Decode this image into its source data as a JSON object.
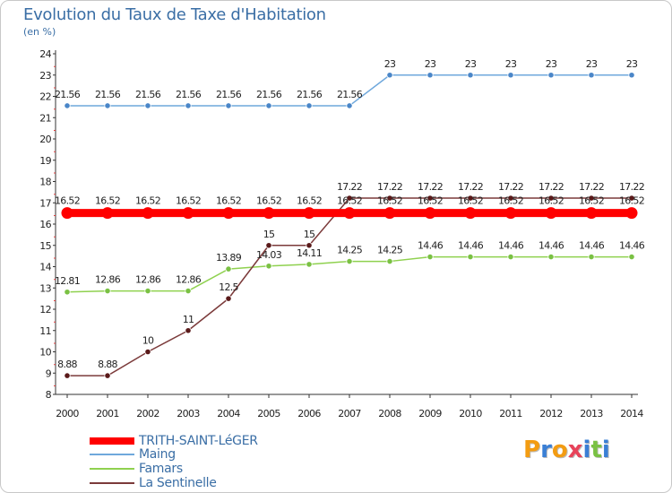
{
  "chart_data": {
    "type": "line",
    "title": "Evolution du Taux de Taxe d'Habitation",
    "subtitle": "(en %)",
    "xlabel": "",
    "ylabel": "(en %)",
    "ylim": [
      8,
      24
    ],
    "x": [
      "2000",
      "2001",
      "2002",
      "2003",
      "2004",
      "2005",
      "2006",
      "2007",
      "2008",
      "2009",
      "2010",
      "2011",
      "2012",
      "2013",
      "2014"
    ],
    "yticks": [
      "8",
      "9",
      "10",
      "11",
      "12",
      "13",
      "14",
      "15",
      "16",
      "17",
      "18",
      "19",
      "20",
      "21",
      "22",
      "23",
      "24"
    ],
    "series": [
      {
        "name": "TRITH-SAINT-LéGER",
        "color": "#ff0000",
        "thick": true,
        "values": [
          16.52,
          16.52,
          16.52,
          16.52,
          16.52,
          16.52,
          16.52,
          16.52,
          16.52,
          16.52,
          16.52,
          16.52,
          16.52,
          16.52,
          16.52
        ],
        "labels": [
          "16.52",
          "16.52",
          "16.52",
          "16.52",
          "16.52",
          "16.52",
          "16.52",
          "16.52",
          "16.52",
          "16.52",
          "16.52",
          "16.52",
          "16.52",
          "16.52",
          "16.52"
        ]
      },
      {
        "name": "Maing",
        "color": "#6fa8dc",
        "thick": false,
        "marker": "#4a86c8",
        "values": [
          21.56,
          21.56,
          21.56,
          21.56,
          21.56,
          21.56,
          21.56,
          21.56,
          23,
          23,
          23,
          23,
          23,
          23,
          23
        ],
        "labels": [
          "21.56",
          "21.56",
          "21.56",
          "21.56",
          "21.56",
          "21.56",
          "21.56",
          "21.56",
          "23",
          "23",
          "23",
          "23",
          "23",
          "23",
          "23"
        ]
      },
      {
        "name": "Famars",
        "color": "#8fd14f",
        "thick": false,
        "marker": "#7ac143",
        "values": [
          12.81,
          12.86,
          12.86,
          12.86,
          13.89,
          14.03,
          14.11,
          14.25,
          14.25,
          14.46,
          14.46,
          14.46,
          14.46,
          14.46,
          14.46
        ],
        "labels": [
          "12.81",
          "12.86",
          "12.86",
          "12.86",
          "13.89",
          "14.03",
          "14.11",
          "14.25",
          "14.25",
          "14.46",
          "14.46",
          "14.46",
          "14.46",
          "14.46",
          "14.46"
        ]
      },
      {
        "name": "La Sentinelle",
        "color": "#7b3a3a",
        "thick": false,
        "marker": "#5a1a1a",
        "values": [
          8.88,
          8.88,
          10,
          11,
          12.5,
          15,
          15,
          17.22,
          17.22,
          17.22,
          17.22,
          17.22,
          17.22,
          17.22,
          17.22
        ],
        "labels": [
          "8.88",
          "8.88",
          "10",
          "11",
          "12.5",
          "15",
          "15",
          "17.22",
          "17.22",
          "17.22",
          "17.22",
          "17.22",
          "17.22",
          "17.22",
          "17.22"
        ]
      }
    ],
    "legend_position": "bottom-left",
    "grid": false
  },
  "brand": {
    "letters": [
      "P",
      "r",
      "o",
      "x",
      "i",
      "t",
      "i"
    ],
    "colors": [
      "#f39c12",
      "#3a7fd5",
      "#f39c12",
      "#e8435a",
      "#3a7fd5",
      "#7ac143",
      "#3a7fd5"
    ]
  }
}
